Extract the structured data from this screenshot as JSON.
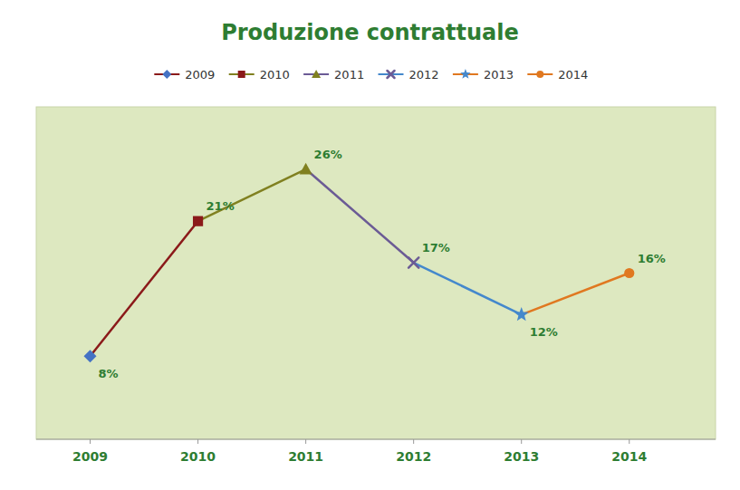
{
  "chart_data": {
    "type": "line",
    "title": "Produzione contrattuale",
    "x": [
      2009,
      2010,
      2011,
      2012,
      2013,
      2014
    ],
    "xlim": [
      2008.5,
      2014.8
    ],
    "xticks": [
      2009,
      2010,
      2011,
      2012,
      2013,
      2014
    ],
    "ylim": [
      0,
      32
    ],
    "tick_labels": "x",
    "grid": false,
    "legend": "top",
    "data_labels": true,
    "series": [
      {
        "name": "2009",
        "color": "#4472C4",
        "marker": "diamond",
        "values": [
          8,
          null,
          null,
          null,
          null,
          null
        ],
        "value_labels": [
          "8%",
          null,
          null,
          null,
          null,
          null
        ]
      },
      {
        "name": "2010",
        "color": "#8B1A1A",
        "marker": "square",
        "values": [
          null,
          21,
          null,
          null,
          null,
          null
        ],
        "value_labels": [
          null,
          "21%",
          null,
          null,
          null,
          null
        ]
      },
      {
        "name": "2011",
        "color": "#808020",
        "marker": "triangle",
        "values": [
          null,
          null,
          26,
          null,
          null,
          null
        ],
        "value_labels": [
          null,
          null,
          "26%",
          null,
          null,
          null
        ]
      },
      {
        "name": "2012",
        "color": "#6B5B95",
        "marker": "x",
        "values": [
          null,
          null,
          null,
          17,
          null,
          null
        ],
        "value_labels": [
          null,
          null,
          null,
          "17%",
          null,
          null
        ]
      },
      {
        "name": "2013",
        "color": "#4488CC",
        "marker": "star",
        "values": [
          null,
          null,
          null,
          null,
          12,
          null
        ],
        "value_labels": [
          null,
          null,
          null,
          null,
          "12%",
          null
        ]
      },
      {
        "name": "2014",
        "color": "#E07820",
        "marker": "circle",
        "values": [
          null,
          null,
          null,
          null,
          null,
          16
        ],
        "value_labels": [
          null,
          null,
          null,
          null,
          null,
          "16%"
        ]
      }
    ]
  }
}
